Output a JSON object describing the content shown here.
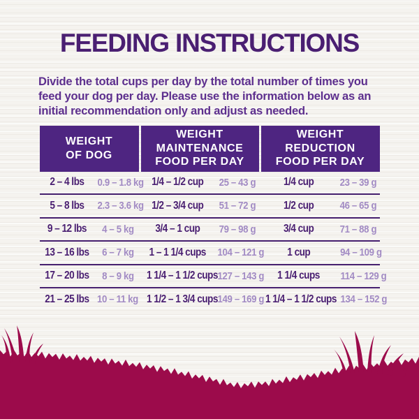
{
  "page": {
    "title": "FEEDING INSTRUCTIONS",
    "intro": "Divide the total cups per day by the total number of times you feed your dog per day. Please use the information below as an initial recommendation only and adjust as needed."
  },
  "table": {
    "headers": [
      {
        "label": "WEIGHT OF DOG",
        "lines": [
          "WEIGHT",
          "OF DOG"
        ]
      },
      {
        "label": "WEIGHT MAINTENANCE FOOD PER DAY",
        "lines": [
          "WEIGHT",
          "MAINTENANCE",
          "FOOD PER DAY"
        ]
      },
      {
        "label": "WEIGHT REDUCTION FOOD PER DAY",
        "lines": [
          "WEIGHT",
          "REDUCTION",
          "FOOD PER DAY"
        ]
      }
    ],
    "rows": [
      {
        "lbs": "2 – 4 lbs",
        "kg": "0.9 – 1.8 kg",
        "maintenance_cups": "1/4 – 1/2 cup",
        "maintenance_grams": "25 – 43 g",
        "reduction_cups": "1/4 cup",
        "reduction_grams": "23 – 39 g"
      },
      {
        "lbs": "5 – 8 lbs",
        "kg": "2.3 – 3.6 kg",
        "maintenance_cups": "1/2 – 3/4 cup",
        "maintenance_grams": "51 – 72 g",
        "reduction_cups": "1/2 cup",
        "reduction_grams": "46 – 65 g"
      },
      {
        "lbs": "9 – 12 lbs",
        "kg": "4 – 5 kg",
        "maintenance_cups": "3/4 – 1 cup",
        "maintenance_grams": "79 – 98 g",
        "reduction_cups": "3/4 cup",
        "reduction_grams": "71 – 88 g"
      },
      {
        "lbs": "13 – 16 lbs",
        "kg": "6 – 7 kg",
        "maintenance_cups": "1 – 1 1/4 cups",
        "maintenance_grams": "104 – 121 g",
        "reduction_cups": "1 cup",
        "reduction_grams": "94 – 109 g"
      },
      {
        "lbs": "17 – 20 lbs",
        "kg": "8 – 9 kg",
        "maintenance_cups": "1 1/4 – 1 1/2 cups",
        "maintenance_grams": "127 – 143 g",
        "reduction_cups": "1 1/4 cups",
        "reduction_grams": "114 – 129 g"
      },
      {
        "lbs": "21 – 25 lbs",
        "kg": "10 – 11 kg",
        "maintenance_cups": "1 1/2 – 1 3/4 cups",
        "maintenance_grams": "149 – 169 g",
        "reduction_cups": "1 1/4 – 1 1/2 cups",
        "reduction_grams": "134 – 152 g"
      }
    ]
  },
  "colors": {
    "title_purple": "#4a1f72",
    "intro_purple": "#5d2f8e",
    "header_background_purple": "#4e2581",
    "header_text": "#ffffff",
    "row_bold_text_purple": "#4a1f72",
    "row_light_text_lavender": "#a28bc4",
    "row_divider_purple": "#46206f",
    "grass_magenta": "#9c0b4b",
    "background_offwhite": "#f5f3ef"
  }
}
